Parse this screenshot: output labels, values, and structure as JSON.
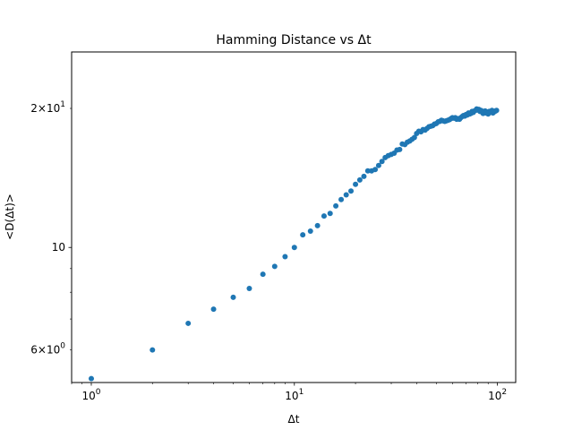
{
  "chart_data": {
    "type": "scatter",
    "title": "Hamming Distance vs Δt",
    "xlabel": "Δt",
    "ylabel": "<D(Δt)>",
    "xscale": "log",
    "yscale": "log",
    "xlim": [
      0.8,
      123
    ],
    "ylim": [
      5.1,
      26.5
    ],
    "grid": false,
    "marker_color": "#1f77b4",
    "x_ticks": [
      {
        "value": 1,
        "base": "10",
        "exp": "0"
      },
      {
        "value": 10,
        "base": "10",
        "exp": "1"
      },
      {
        "value": 100,
        "base": "10",
        "exp": "2"
      }
    ],
    "y_ticks": [
      {
        "value": 6,
        "coef": "6",
        "base": "10",
        "exp": "0"
      },
      {
        "value": 10,
        "coef": "",
        "base": "10",
        "exp": ""
      },
      {
        "value": 20,
        "coef": "2",
        "base": "10",
        "exp": "1"
      }
    ],
    "x": [
      1,
      2,
      3,
      4,
      5,
      6,
      7,
      8,
      9,
      10,
      11,
      12,
      13,
      14,
      15,
      16,
      17,
      18,
      19,
      20,
      21,
      22,
      23,
      24,
      25,
      26,
      27,
      28,
      29,
      30,
      31,
      32,
      33,
      34,
      35,
      36,
      37,
      38,
      39,
      40,
      41,
      42,
      43,
      44,
      45,
      46,
      47,
      48,
      49,
      50,
      51,
      52,
      53,
      54,
      55,
      56,
      57,
      58,
      59,
      60,
      61,
      62,
      63,
      64,
      65,
      66,
      67,
      68,
      69,
      70,
      71,
      72,
      73,
      74,
      75,
      76,
      77,
      78,
      79,
      80,
      81,
      82,
      83,
      84,
      85,
      86,
      87,
      88,
      89,
      90,
      91,
      92,
      93,
      94,
      95,
      96,
      97,
      98,
      99
    ],
    "y": [
      5.2,
      6.0,
      6.85,
      7.35,
      7.8,
      8.15,
      8.75,
      9.1,
      9.55,
      10.0,
      10.65,
      10.85,
      11.15,
      11.7,
      11.85,
      12.3,
      12.7,
      13.0,
      13.25,
      13.7,
      14.0,
      14.25,
      14.65,
      14.65,
      14.75,
      15.05,
      15.35,
      15.65,
      15.8,
      15.9,
      16.0,
      16.25,
      16.3,
      16.75,
      16.7,
      16.9,
      17.0,
      17.15,
      17.3,
      17.65,
      17.85,
      17.8,
      18.0,
      17.95,
      18.1,
      18.25,
      18.3,
      18.35,
      18.5,
      18.55,
      18.7,
      18.75,
      18.85,
      18.8,
      18.75,
      18.8,
      18.85,
      18.9,
      19.0,
      19.1,
      19.05,
      19.1,
      18.95,
      19.0,
      18.95,
      19.1,
      19.2,
      19.3,
      19.25,
      19.4,
      19.35,
      19.55,
      19.45,
      19.5,
      19.7,
      19.6,
      19.75,
      19.8,
      19.95,
      19.85,
      19.9,
      19.7,
      19.8,
      19.65,
      19.5,
      19.7,
      19.75,
      19.55,
      19.6,
      19.45,
      19.7,
      19.6,
      19.65,
      19.8,
      19.55,
      19.65,
      19.7,
      19.75,
      19.8
    ]
  }
}
